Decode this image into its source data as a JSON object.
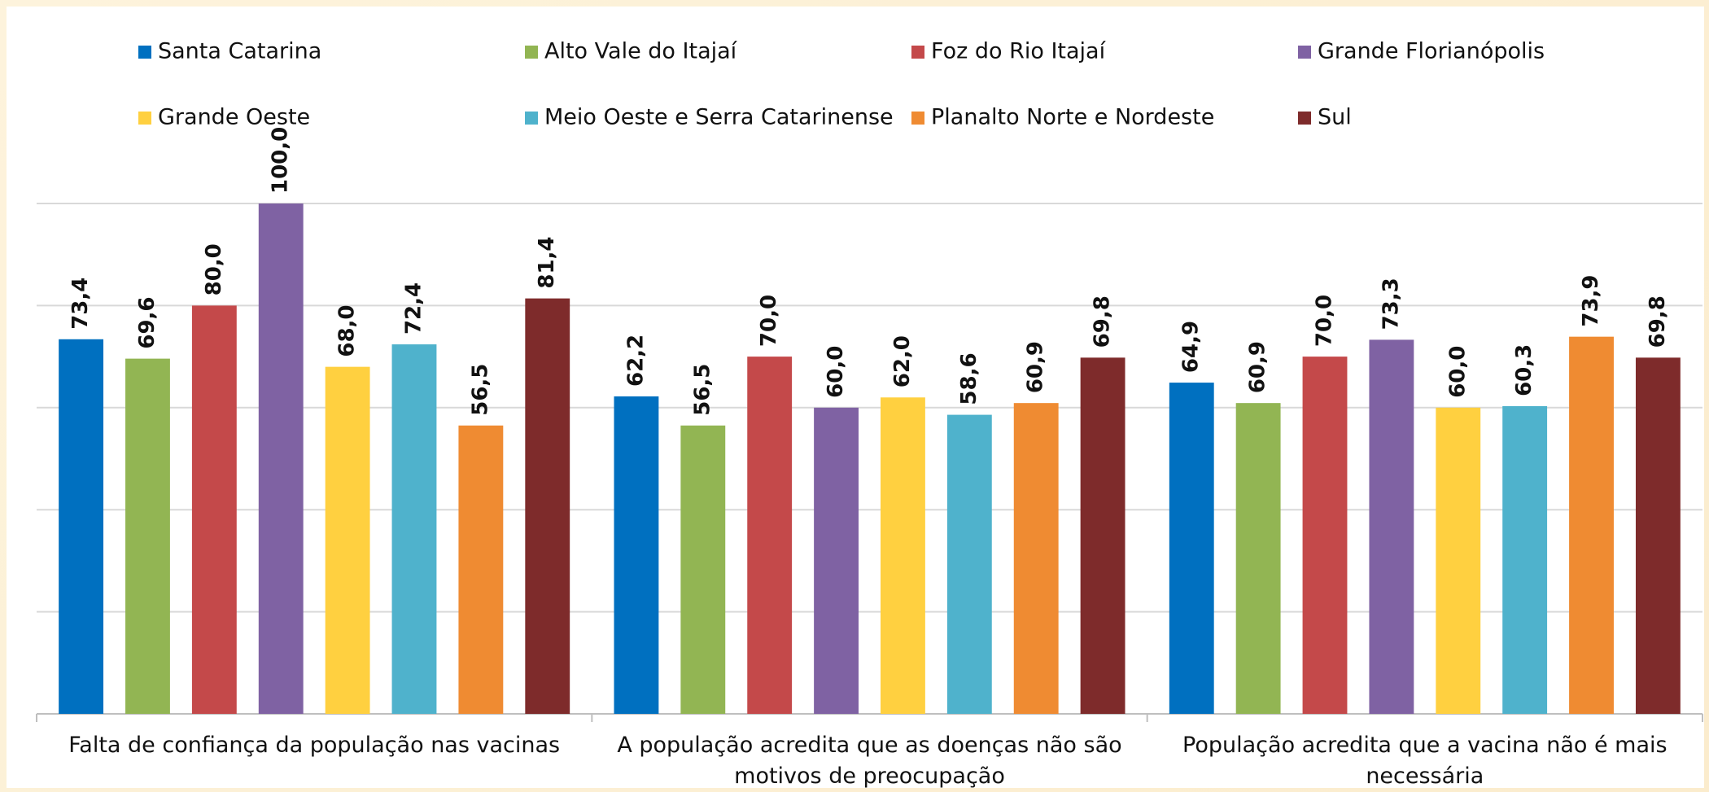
{
  "chart_data": {
    "type": "bar",
    "categories": [
      "Falta de confiança da população nas vacinas",
      "A população acredita que as doenças não são motivos de preocupação",
      "População acredita que a vacina não é mais necessária"
    ],
    "series": [
      {
        "name": "Santa Catarina",
        "color": "#0070c0",
        "values": [
          73.4,
          62.2,
          64.9
        ],
        "value_labels": [
          "73,4",
          "62,2",
          "64,9"
        ]
      },
      {
        "name": "Alto Vale do Itajaí",
        "color": "#92b553",
        "values": [
          69.6,
          56.5,
          60.9
        ],
        "value_labels": [
          "69,6",
          "56,5",
          "60,9"
        ]
      },
      {
        "name": "Foz do Rio Itajaí",
        "color": "#c4494a",
        "values": [
          80.0,
          70.0,
          70.0
        ],
        "value_labels": [
          "80,0",
          "70,0",
          "70,0"
        ]
      },
      {
        "name": "Grande Florianópolis",
        "color": "#7f62a3",
        "values": [
          100.0,
          60.0,
          73.3
        ],
        "value_labels": [
          "100,0",
          "60,0",
          "73,3"
        ]
      },
      {
        "name": "Grande Oeste",
        "color": "#ffd040",
        "values": [
          68.0,
          62.0,
          60.0
        ],
        "value_labels": [
          "68,0",
          "62,0",
          "60,0"
        ]
      },
      {
        "name": "Meio Oeste e Serra Catarinense",
        "color": "#4fb2cc",
        "values": [
          72.4,
          58.6,
          60.3
        ],
        "value_labels": [
          "72,4",
          "58,6",
          "60,3"
        ]
      },
      {
        "name": "Planalto Norte e Nordeste",
        "color": "#ef8b32",
        "values": [
          56.5,
          60.9,
          73.9
        ],
        "value_labels": [
          "56,5",
          "60,9",
          "73,9"
        ]
      },
      {
        "name": "Sul",
        "color": "#7e2b2b",
        "values": [
          81.4,
          69.8,
          69.8
        ],
        "value_labels": [
          "81,4",
          "69,8",
          "69,8"
        ]
      }
    ],
    "ylim": [
      0,
      100
    ],
    "yticks": [
      0,
      20,
      40,
      60,
      80,
      100
    ],
    "grid": true
  }
}
